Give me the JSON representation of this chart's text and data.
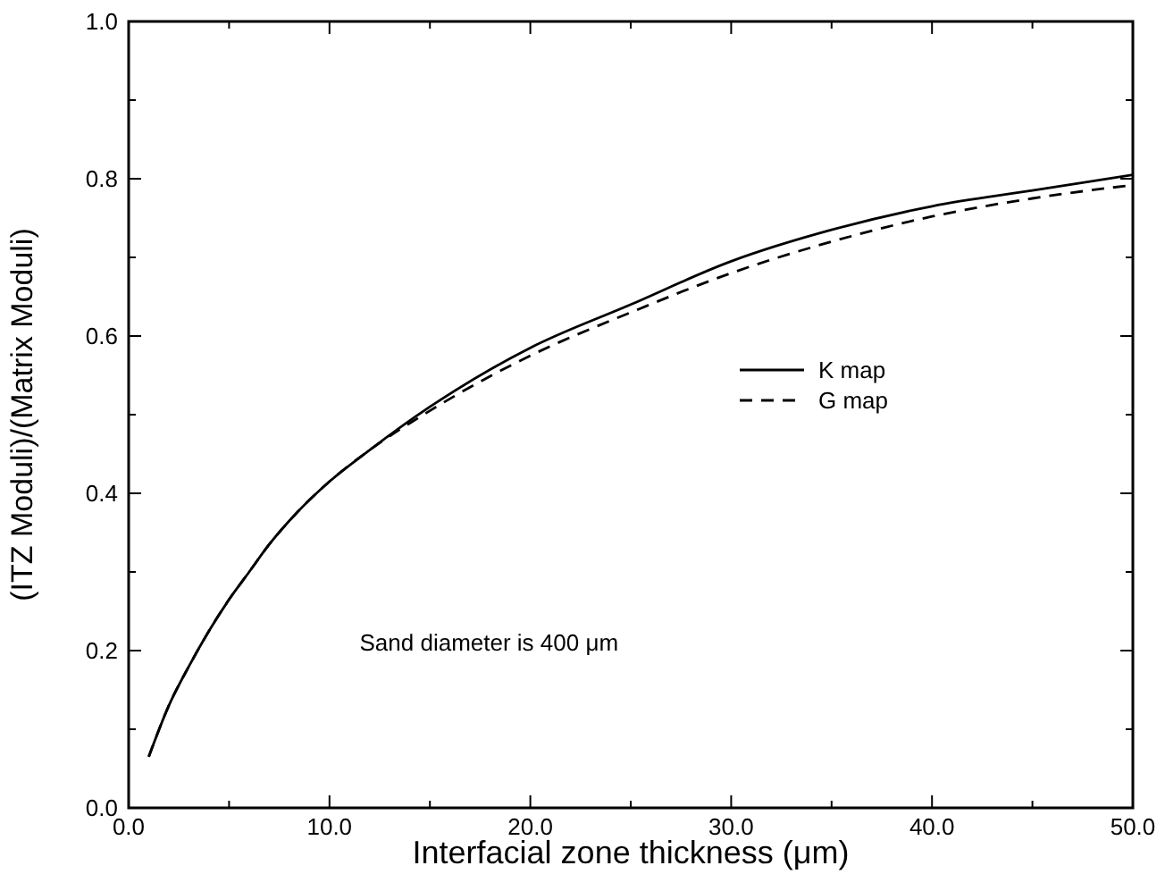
{
  "chart_data": {
    "type": "line",
    "xlabel": "Interfacial zone thickness (μm)",
    "ylabel": "(ITZ Moduli)/(Matrix Moduli)",
    "x": [
      1,
      2,
      3,
      4,
      5,
      6,
      7,
      8,
      10,
      12,
      15,
      20,
      25,
      30,
      35,
      40,
      45,
      50
    ],
    "series": [
      {
        "name": "K map",
        "color": "#000000",
        "line_style": "solid",
        "values": [
          0.065,
          0.13,
          0.18,
          0.225,
          0.265,
          0.3,
          0.335,
          0.365,
          0.415,
          0.455,
          0.51,
          0.585,
          0.64,
          0.695,
          0.735,
          0.765,
          0.785,
          0.805
        ]
      },
      {
        "name": "G map",
        "color": "#000000",
        "line_style": "dashed",
        "values": [
          0.065,
          0.13,
          0.18,
          0.225,
          0.265,
          0.3,
          0.335,
          0.365,
          0.415,
          0.455,
          0.505,
          0.575,
          0.63,
          0.68,
          0.72,
          0.752,
          0.775,
          0.792
        ]
      }
    ],
    "xlim": [
      0,
      50
    ],
    "ylim": [
      0,
      1
    ],
    "xticks": [
      {
        "value": 0,
        "label": "0.0"
      },
      {
        "value": 5,
        "label": null
      },
      {
        "value": 10,
        "label": "10.0"
      },
      {
        "value": 15,
        "label": null
      },
      {
        "value": 20,
        "label": "20.0"
      },
      {
        "value": 25,
        "label": null
      },
      {
        "value": 30,
        "label": "30.0"
      },
      {
        "value": 35,
        "label": null
      },
      {
        "value": 40,
        "label": "40.0"
      },
      {
        "value": 45,
        "label": null
      },
      {
        "value": 50,
        "label": "50.0"
      }
    ],
    "yticks": [
      {
        "value": 0,
        "label": "0.0"
      },
      {
        "value": 0.1,
        "label": null
      },
      {
        "value": 0.2,
        "label": "0.2"
      },
      {
        "value": 0.3,
        "label": null
      },
      {
        "value": 0.4,
        "label": "0.4"
      },
      {
        "value": 0.5,
        "label": null
      },
      {
        "value": 0.6,
        "label": "0.6"
      },
      {
        "value": 0.7,
        "label": null
      },
      {
        "value": 0.8,
        "label": "0.8"
      },
      {
        "value": 0.9,
        "label": null
      },
      {
        "value": 1,
        "label": "1.0"
      }
    ],
    "annotations": [
      "Sand diameter is 400 μm"
    ],
    "legend": "center right",
    "grid": false,
    "marker": "none"
  }
}
